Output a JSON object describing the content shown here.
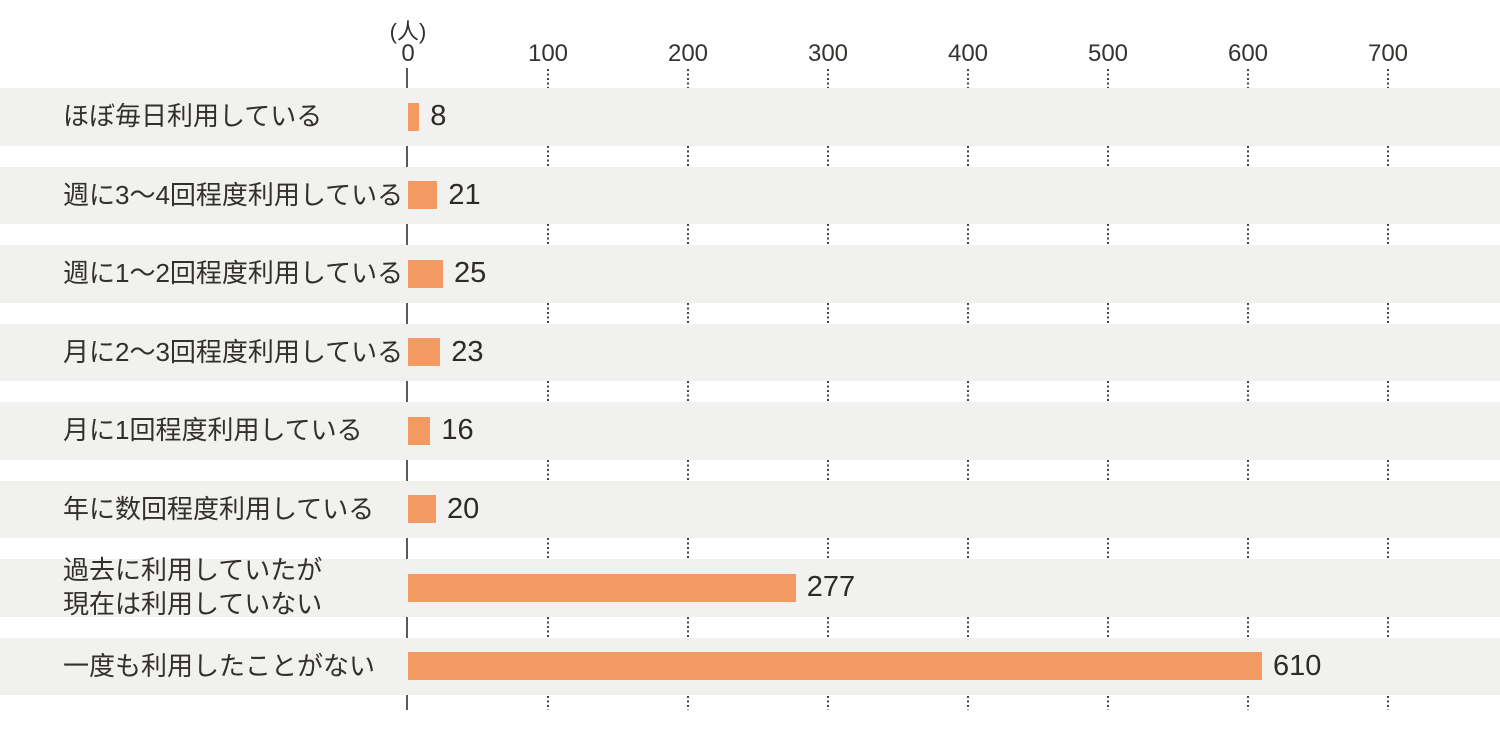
{
  "chart_data": {
    "type": "bar",
    "orientation": "horizontal",
    "title": "",
    "xlabel": "(人)",
    "ylabel": "",
    "categories": [
      "ほぼ毎日利用している",
      "週に3〜4回程度利用している",
      "週に1〜2回程度利用している",
      "月に2〜3回程度利用している",
      "月に1回程度利用している",
      "年に数回程度利用している",
      "過去に利用していたが\n現在は利用していない",
      "一度も利用したことがない"
    ],
    "values": [
      8,
      21,
      25,
      23,
      16,
      20,
      277,
      610
    ],
    "xlim": [
      0,
      700
    ],
    "xticks": [
      0,
      100,
      200,
      300,
      400,
      500,
      600,
      700
    ],
    "grid": "dotted-vertical-in-row-gaps",
    "legend": "none",
    "bar_color": "#f29a61",
    "row_band_color": "#f1f1f0",
    "text_color": "#332f2b",
    "axis_line_color": "#5a585a"
  }
}
